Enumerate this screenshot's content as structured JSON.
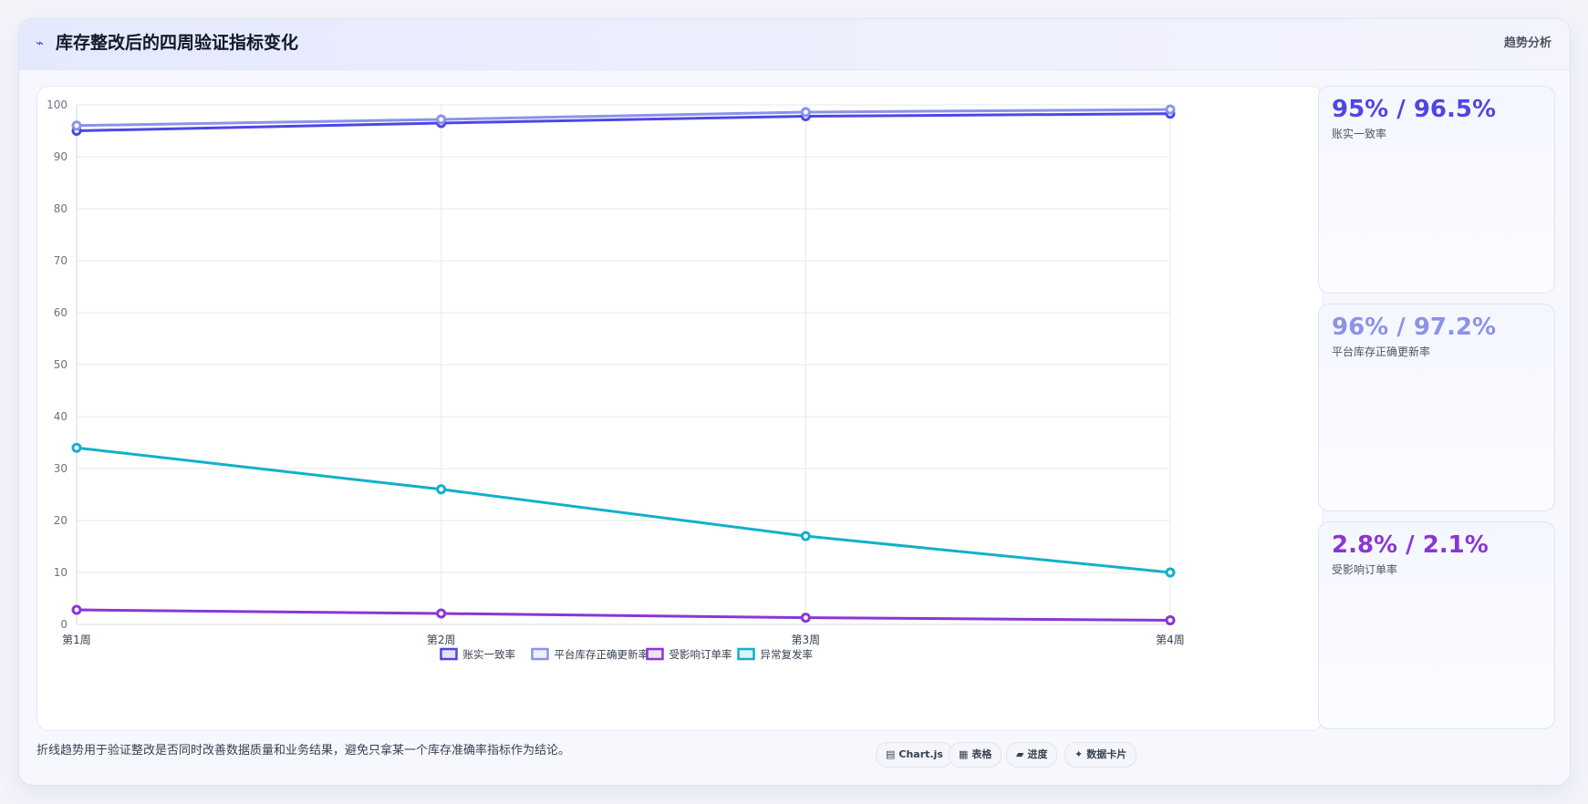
{
  "header": {
    "icon": "pulse-icon",
    "title": "库存整改后的四周验证指标变化",
    "tag": "趋势分析"
  },
  "chart_data": {
    "type": "line",
    "categories": [
      "第1周",
      "第2周",
      "第3周",
      "第4周"
    ],
    "series": [
      {
        "name": "账实一致率",
        "color": "#4f46e5",
        "values": [
          95,
          96.5,
          97.8,
          98.3
        ]
      },
      {
        "name": "平台库存正确更新率",
        "color": "#8b93ea",
        "values": [
          96,
          97.2,
          98.6,
          99.1
        ]
      },
      {
        "name": "受影响订单率",
        "color": "#8b35d6",
        "values": [
          2.8,
          2.1,
          1.3,
          0.8
        ]
      },
      {
        "name": "异常复发率",
        "color": "#13b0c9",
        "values": [
          34,
          26,
          17,
          10
        ]
      }
    ],
    "ylim": [
      0,
      100
    ],
    "yticks": [
      0,
      10,
      20,
      30,
      40,
      50,
      60,
      70,
      80,
      90,
      100
    ],
    "grid": true,
    "legend": "bottom"
  },
  "kpis": [
    {
      "value": "95% / 96.5%",
      "label": "账实一致率",
      "color": "#4f46e5"
    },
    {
      "value": "96% / 97.2%",
      "label": "平台库存正确更新率",
      "color": "#8b93ea"
    },
    {
      "value": "2.8% / 2.1%",
      "label": "受影响订单率",
      "color": "#8b35d6"
    }
  ],
  "footer": {
    "note": "折线趋势用于验证整改是否同时改善数据质量和业务结果，避免只拿某一个库存准确率指标作为结论。",
    "chips": [
      {
        "icon": "chart-icon",
        "glyph": "▤",
        "label": "Chart.js"
      },
      {
        "icon": "table-icon",
        "glyph": "▦",
        "label": "表格"
      },
      {
        "icon": "progress-icon",
        "glyph": "▰",
        "label": "进度"
      },
      {
        "icon": "card-icon",
        "glyph": "✦",
        "label": "数据卡片"
      }
    ]
  }
}
